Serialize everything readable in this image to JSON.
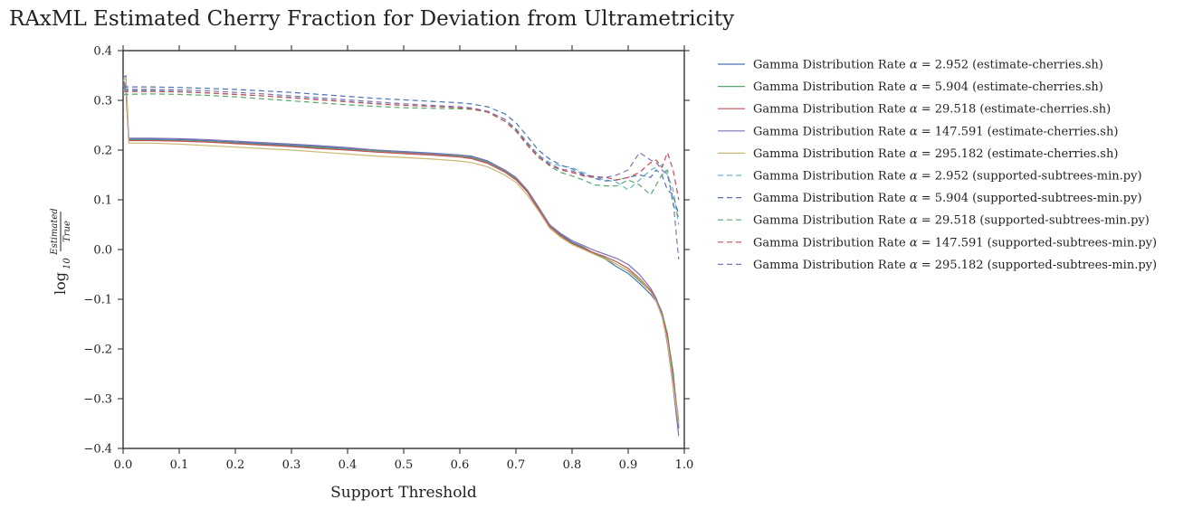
{
  "chart_data": {
    "type": "line",
    "title": "RAxML Estimated Cherry Fraction for Deviation from Ultrametricity",
    "xlabel": "Support Threshold",
    "ylabel": {
      "prefix": "log",
      "base": "10",
      "numerator": "Estimated",
      "denominator": "True"
    },
    "xlim": [
      0.0,
      1.0
    ],
    "ylim": [
      -0.4,
      0.4
    ],
    "xticks": [
      "0.0",
      "0.1",
      "0.2",
      "0.3",
      "0.4",
      "0.5",
      "0.6",
      "0.7",
      "0.8",
      "0.9",
      "1.0"
    ],
    "yticks": [
      "0.4",
      "0.3",
      "0.2",
      "0.1",
      "0.0",
      "−0.1",
      "−0.2",
      "−0.3",
      "−0.4"
    ],
    "grid": false,
    "legend_position": "outside-right",
    "series": [
      {
        "name": "Gamma Distribution Rate α = 2.952 (estimate-cherries.sh)",
        "legend_prefix": "Gamma Distribution Rate ",
        "legend_alpha": "α",
        "legend_rest": " = 2.952 (estimate-cherries.sh)",
        "color": "#4c72b0",
        "style": "solid",
        "x": [
          0.0,
          0.005,
          0.01,
          0.05,
          0.1,
          0.15,
          0.2,
          0.25,
          0.3,
          0.35,
          0.4,
          0.45,
          0.5,
          0.55,
          0.6,
          0.62,
          0.65,
          0.68,
          0.7,
          0.72,
          0.74,
          0.76,
          0.78,
          0.8,
          0.82,
          0.84,
          0.86,
          0.88,
          0.9,
          0.92,
          0.94,
          0.95,
          0.96,
          0.97,
          0.98,
          0.99
        ],
        "values": [
          0.34,
          0.33,
          0.222,
          0.222,
          0.221,
          0.219,
          0.216,
          0.213,
          0.21,
          0.207,
          0.203,
          0.2,
          0.197,
          0.194,
          0.19,
          0.188,
          0.178,
          0.16,
          0.145,
          0.12,
          0.085,
          0.05,
          0.03,
          0.015,
          0.005,
          -0.008,
          -0.02,
          -0.035,
          -0.048,
          -0.068,
          -0.09,
          -0.105,
          -0.13,
          -0.175,
          -0.245,
          -0.36
        ]
      },
      {
        "name": "Gamma Distribution Rate α = 5.904 (estimate-cherries.sh)",
        "legend_prefix": "Gamma Distribution Rate ",
        "legend_alpha": "α",
        "legend_rest": " = 5.904 (estimate-cherries.sh)",
        "color": "#55a868",
        "style": "solid",
        "x": [
          0.0,
          0.005,
          0.01,
          0.05,
          0.1,
          0.15,
          0.2,
          0.25,
          0.3,
          0.35,
          0.4,
          0.45,
          0.5,
          0.55,
          0.6,
          0.62,
          0.65,
          0.68,
          0.7,
          0.72,
          0.74,
          0.76,
          0.78,
          0.8,
          0.82,
          0.84,
          0.86,
          0.88,
          0.9,
          0.92,
          0.94,
          0.95,
          0.96,
          0.97,
          0.98,
          0.99
        ],
        "values": [
          0.33,
          0.32,
          0.22,
          0.22,
          0.219,
          0.217,
          0.214,
          0.211,
          0.208,
          0.205,
          0.201,
          0.198,
          0.195,
          0.192,
          0.188,
          0.185,
          0.175,
          0.158,
          0.142,
          0.118,
          0.083,
          0.048,
          0.028,
          0.013,
          0.003,
          -0.008,
          -0.018,
          -0.03,
          -0.043,
          -0.063,
          -0.085,
          -0.1,
          -0.125,
          -0.17,
          -0.25,
          -0.355
        ]
      },
      {
        "name": "Gamma Distribution Rate α = 29.518 (estimate-cherries.sh)",
        "legend_prefix": "Gamma Distribution Rate ",
        "legend_alpha": "α",
        "legend_rest": " = 29.518 (estimate-cherries.sh)",
        "color": "#c44e52",
        "style": "solid",
        "x": [
          0.0,
          0.005,
          0.01,
          0.05,
          0.1,
          0.15,
          0.2,
          0.25,
          0.3,
          0.35,
          0.4,
          0.45,
          0.5,
          0.55,
          0.6,
          0.62,
          0.65,
          0.68,
          0.7,
          0.72,
          0.74,
          0.76,
          0.78,
          0.8,
          0.82,
          0.84,
          0.86,
          0.88,
          0.9,
          0.92,
          0.94,
          0.95,
          0.96,
          0.97,
          0.98,
          0.99
        ],
        "values": [
          0.335,
          0.325,
          0.219,
          0.219,
          0.218,
          0.216,
          0.213,
          0.21,
          0.207,
          0.203,
          0.2,
          0.196,
          0.193,
          0.19,
          0.186,
          0.183,
          0.173,
          0.156,
          0.14,
          0.116,
          0.081,
          0.046,
          0.027,
          0.012,
          0.002,
          -0.007,
          -0.015,
          -0.025,
          -0.038,
          -0.058,
          -0.082,
          -0.1,
          -0.128,
          -0.175,
          -0.26,
          -0.345
        ]
      },
      {
        "name": "Gamma Distribution Rate α = 147.591 (estimate-cherries.sh)",
        "legend_prefix": "Gamma Distribution Rate ",
        "legend_alpha": "α",
        "legend_rest": " = 147.591 (estimate-cherries.sh)",
        "color": "#8172b2",
        "style": "solid",
        "x": [
          0.0,
          0.005,
          0.01,
          0.05,
          0.1,
          0.15,
          0.2,
          0.25,
          0.3,
          0.35,
          0.4,
          0.45,
          0.5,
          0.55,
          0.6,
          0.62,
          0.65,
          0.68,
          0.7,
          0.72,
          0.74,
          0.76,
          0.78,
          0.8,
          0.82,
          0.84,
          0.86,
          0.88,
          0.9,
          0.92,
          0.94,
          0.95,
          0.96,
          0.97,
          0.98,
          0.99
        ],
        "values": [
          0.345,
          0.35,
          0.224,
          0.224,
          0.223,
          0.221,
          0.218,
          0.215,
          0.212,
          0.209,
          0.205,
          0.2,
          0.196,
          0.193,
          0.19,
          0.187,
          0.177,
          0.16,
          0.144,
          0.12,
          0.086,
          0.05,
          0.032,
          0.018,
          0.008,
          -0.002,
          -0.01,
          -0.018,
          -0.03,
          -0.05,
          -0.078,
          -0.098,
          -0.13,
          -0.19,
          -0.275,
          -0.375
        ]
      },
      {
        "name": "Gamma Distribution Rate α = 295.182 (estimate-cherries.sh)",
        "legend_prefix": "Gamma Distribution Rate ",
        "legend_alpha": "α",
        "legend_rest": " = 295.182 (estimate-cherries.sh)",
        "color": "#ccb974",
        "style": "solid",
        "x": [
          0.0,
          0.005,
          0.01,
          0.05,
          0.1,
          0.15,
          0.2,
          0.25,
          0.3,
          0.35,
          0.4,
          0.45,
          0.5,
          0.55,
          0.6,
          0.62,
          0.65,
          0.68,
          0.7,
          0.72,
          0.74,
          0.76,
          0.78,
          0.8,
          0.82,
          0.84,
          0.86,
          0.88,
          0.9,
          0.92,
          0.94,
          0.95,
          0.96,
          0.97,
          0.98,
          0.99
        ],
        "values": [
          0.34,
          0.345,
          0.214,
          0.214,
          0.212,
          0.209,
          0.206,
          0.203,
          0.2,
          0.196,
          0.192,
          0.188,
          0.185,
          0.182,
          0.178,
          0.175,
          0.166,
          0.15,
          0.135,
          0.11,
          0.078,
          0.043,
          0.024,
          0.01,
          0.0,
          -0.01,
          -0.02,
          -0.03,
          -0.042,
          -0.06,
          -0.085,
          -0.105,
          -0.135,
          -0.185,
          -0.27,
          -0.35
        ]
      },
      {
        "name": "Gamma Distribution Rate α = 2.952 (supported-subtrees-min.py)",
        "legend_prefix": "Gamma Distribution Rate ",
        "legend_alpha": "α",
        "legend_rest": " = 2.952 (supported-subtrees-min.py)",
        "color": "#64b5cd",
        "style": "dashed",
        "x": [
          0.0,
          0.05,
          0.1,
          0.15,
          0.2,
          0.25,
          0.3,
          0.35,
          0.4,
          0.45,
          0.5,
          0.55,
          0.6,
          0.62,
          0.65,
          0.68,
          0.7,
          0.72,
          0.74,
          0.76,
          0.78,
          0.8,
          0.82,
          0.84,
          0.86,
          0.88,
          0.9,
          0.92,
          0.94,
          0.95,
          0.96,
          0.97,
          0.98,
          0.99
        ],
        "values": [
          0.32,
          0.32,
          0.318,
          0.315,
          0.312,
          0.309,
          0.306,
          0.302,
          0.298,
          0.294,
          0.29,
          0.288,
          0.286,
          0.284,
          0.278,
          0.262,
          0.24,
          0.215,
          0.19,
          0.175,
          0.168,
          0.165,
          0.155,
          0.145,
          0.14,
          0.135,
          0.12,
          0.14,
          0.16,
          0.165,
          0.17,
          0.15,
          0.12,
          0.05
        ]
      },
      {
        "name": "Gamma Distribution Rate α = 5.904 (supported-subtrees-min.py)",
        "legend_prefix": "Gamma Distribution Rate ",
        "legend_alpha": "α",
        "legend_rest": " = 5.904 (supported-subtrees-min.py)",
        "color": "#4c72b0",
        "style": "dashed",
        "x": [
          0.0,
          0.05,
          0.1,
          0.15,
          0.2,
          0.25,
          0.3,
          0.35,
          0.4,
          0.45,
          0.5,
          0.55,
          0.6,
          0.62,
          0.65,
          0.68,
          0.7,
          0.72,
          0.74,
          0.76,
          0.78,
          0.8,
          0.82,
          0.84,
          0.86,
          0.88,
          0.9,
          0.92,
          0.94,
          0.95,
          0.96,
          0.97,
          0.98,
          0.99
        ],
        "values": [
          0.327,
          0.327,
          0.326,
          0.324,
          0.322,
          0.319,
          0.316,
          0.312,
          0.308,
          0.304,
          0.301,
          0.298,
          0.295,
          0.293,
          0.287,
          0.273,
          0.255,
          0.228,
          0.2,
          0.182,
          0.17,
          0.162,
          0.152,
          0.143,
          0.138,
          0.14,
          0.145,
          0.15,
          0.145,
          0.16,
          0.15,
          0.12,
          0.11,
          0.07
        ]
      },
      {
        "name": "Gamma Distribution Rate α = 29.518 (supported-subtrees-min.py)",
        "legend_prefix": "Gamma Distribution Rate ",
        "legend_alpha": "α",
        "legend_rest": " = 29.518 (supported-subtrees-min.py)",
        "color": "#55a868",
        "style": "dashed",
        "x": [
          0.0,
          0.05,
          0.1,
          0.15,
          0.2,
          0.25,
          0.3,
          0.35,
          0.4,
          0.45,
          0.5,
          0.55,
          0.6,
          0.62,
          0.65,
          0.68,
          0.7,
          0.72,
          0.74,
          0.76,
          0.78,
          0.8,
          0.82,
          0.84,
          0.86,
          0.88,
          0.9,
          0.92,
          0.94,
          0.95,
          0.96,
          0.97,
          0.98,
          0.99
        ],
        "values": [
          0.312,
          0.313,
          0.312,
          0.31,
          0.307,
          0.303,
          0.299,
          0.295,
          0.291,
          0.288,
          0.285,
          0.284,
          0.283,
          0.282,
          0.277,
          0.262,
          0.243,
          0.216,
          0.19,
          0.168,
          0.155,
          0.148,
          0.14,
          0.13,
          0.128,
          0.128,
          0.14,
          0.13,
          0.11,
          0.13,
          0.15,
          0.16,
          0.09,
          0.065
        ]
      },
      {
        "name": "Gamma Distribution Rate α = 147.591 (supported-subtrees-min.py)",
        "legend_prefix": "Gamma Distribution Rate ",
        "legend_alpha": "α",
        "legend_rest": " = 147.591 (supported-subtrees-min.py)",
        "color": "#c44e52",
        "style": "dashed",
        "x": [
          0.0,
          0.05,
          0.1,
          0.15,
          0.2,
          0.25,
          0.3,
          0.35,
          0.4,
          0.45,
          0.5,
          0.55,
          0.6,
          0.62,
          0.65,
          0.68,
          0.7,
          0.72,
          0.74,
          0.76,
          0.78,
          0.8,
          0.82,
          0.84,
          0.86,
          0.88,
          0.9,
          0.92,
          0.94,
          0.95,
          0.96,
          0.97,
          0.98,
          0.99
        ],
        "values": [
          0.318,
          0.318,
          0.317,
          0.315,
          0.312,
          0.309,
          0.305,
          0.301,
          0.297,
          0.293,
          0.29,
          0.288,
          0.285,
          0.283,
          0.276,
          0.258,
          0.238,
          0.21,
          0.185,
          0.17,
          0.16,
          0.155,
          0.148,
          0.145,
          0.145,
          0.14,
          0.145,
          0.155,
          0.175,
          0.18,
          0.165,
          0.195,
          0.16,
          0.1
        ]
      },
      {
        "name": "Gamma Distribution Rate α = 295.182 (supported-subtrees-min.py)",
        "legend_prefix": "Gamma Distribution Rate ",
        "legend_alpha": "α",
        "legend_rest": " = 295.182 (supported-subtrees-min.py)",
        "color": "#8172b2",
        "style": "dashed",
        "x": [
          0.0,
          0.05,
          0.1,
          0.15,
          0.2,
          0.25,
          0.3,
          0.35,
          0.4,
          0.45,
          0.5,
          0.55,
          0.6,
          0.62,
          0.65,
          0.68,
          0.7,
          0.72,
          0.74,
          0.76,
          0.78,
          0.8,
          0.82,
          0.84,
          0.86,
          0.88,
          0.9,
          0.92,
          0.94,
          0.95,
          0.96,
          0.97,
          0.98,
          0.99
        ],
        "values": [
          0.322,
          0.322,
          0.321,
          0.319,
          0.316,
          0.313,
          0.309,
          0.305,
          0.301,
          0.297,
          0.293,
          0.29,
          0.287,
          0.285,
          0.278,
          0.262,
          0.242,
          0.213,
          0.188,
          0.172,
          0.162,
          0.158,
          0.15,
          0.147,
          0.145,
          0.15,
          0.16,
          0.195,
          0.18,
          0.175,
          0.16,
          0.15,
          0.1,
          -0.02
        ]
      }
    ]
  }
}
